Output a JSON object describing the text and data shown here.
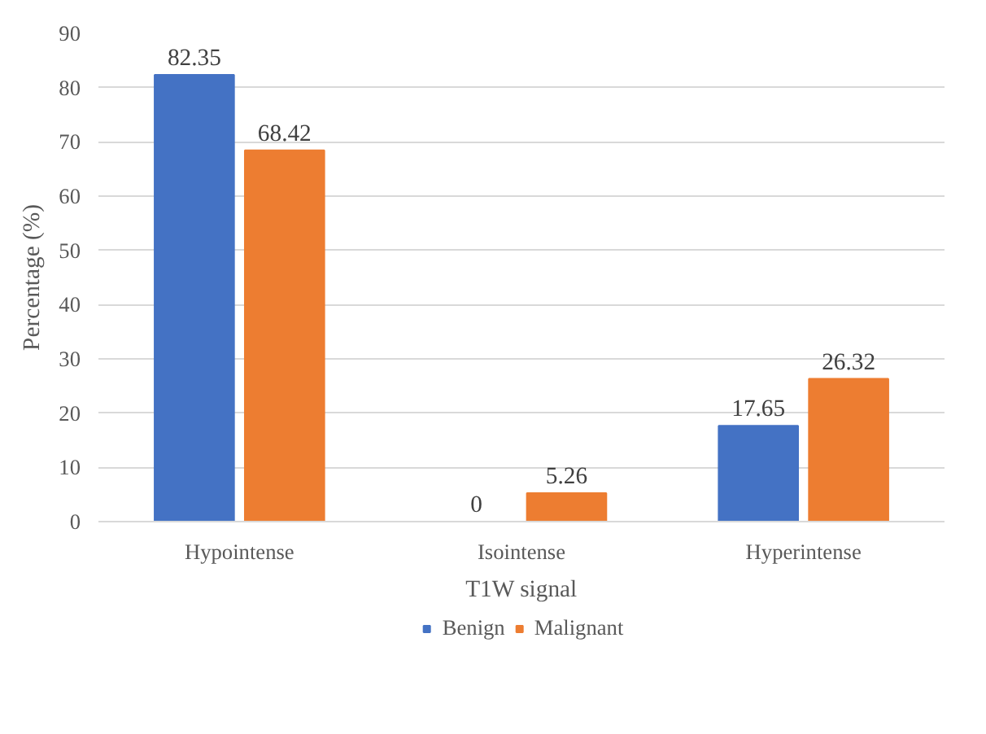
{
  "chart_data": {
    "type": "bar",
    "xlabel": "T1W signal",
    "ylabel": "Percentage (%)",
    "categories": [
      "Hypointense",
      "Isointense",
      "Hyperintense"
    ],
    "series": [
      {
        "name": "Benign",
        "color": "#4472c4",
        "values": [
          82.35,
          0,
          17.65
        ]
      },
      {
        "name": "Malignant",
        "color": "#ed7d31",
        "values": [
          68.42,
          5.26,
          26.32
        ]
      }
    ],
    "ylim": [
      0,
      90
    ],
    "yticks": [
      0,
      10,
      20,
      30,
      40,
      50,
      60,
      70,
      80,
      90
    ],
    "grid": "y",
    "legend": "bottom",
    "data_labels": true
  }
}
